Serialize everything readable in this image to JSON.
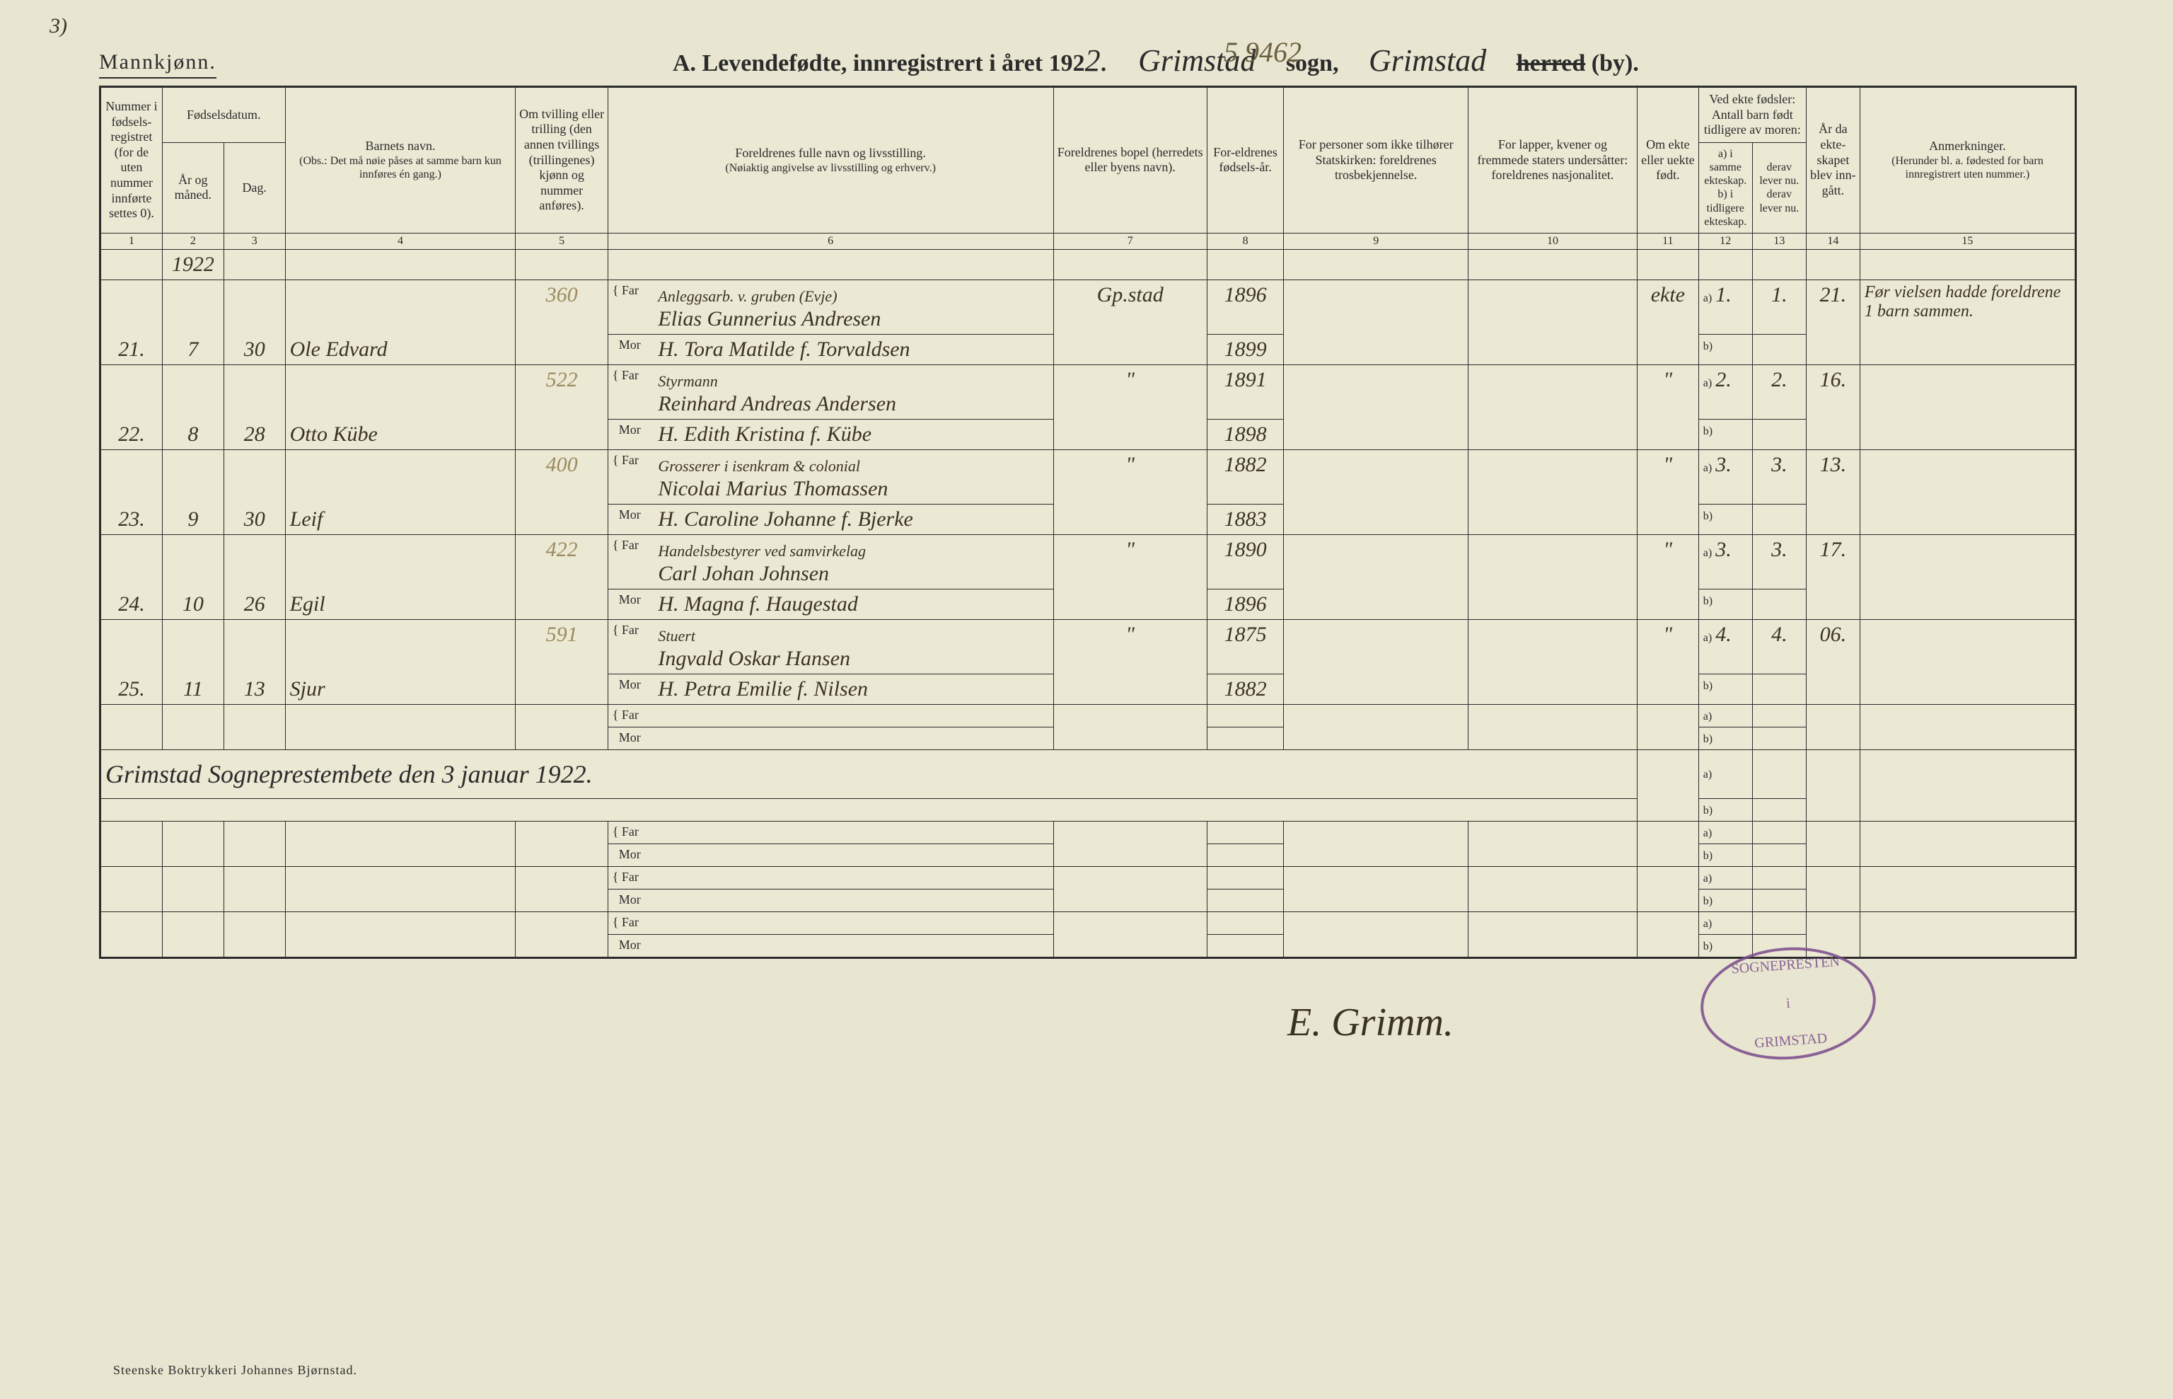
{
  "corner_note": "3)",
  "stray_number": "5 9462",
  "header": {
    "gender": "Mannkjønn.",
    "title_prefix": "A.  Levendefødte, innregistrert i året 192",
    "year_suffix": "2.",
    "parish_script": "Grimstad",
    "sogn_label": "sogn,",
    "district_script": "Grimstad",
    "herred_struck": "herred",
    "by_label": "(by)."
  },
  "columns": {
    "c1": "Nummer i fødsels-registret (for de uten nummer innførte settes 0).",
    "c2_top": "Fødselsdatum.",
    "c2a": "År og måned.",
    "c2b": "Dag.",
    "c4_top": "Barnets navn.",
    "c4_sub": "(Obs.: Det må nøie påses at samme barn kun innføres én gang.)",
    "c5": "Om tvilling eller trilling (den annen tvillings (trillingenes) kjønn og nummer anføres).",
    "c6_top": "Foreldrenes fulle navn og livsstilling.",
    "c6_sub": "(Nøiaktig angivelse av livsstilling og erhverv.)",
    "c7": "Foreldrenes bopel (herredets eller byens navn).",
    "c8": "For-eldrenes fødsels-år.",
    "c9": "For personer som ikke tilhører Statskirken: foreldrenes trosbekjennelse.",
    "c10": "For lapper, kvener og fremmede staters undersåtter: foreldrenes nasjonalitet.",
    "c11": "Om ekte eller uekte født.",
    "c12_top": "Ved ekte fødsler: Antall barn født tidligere av moren:",
    "c12a": "a) i samme ekteskap.",
    "c12a_sub": "derav lever nu.",
    "c12b": "b) i tidligere ekteskap.",
    "c12b_sub": "derav lever nu.",
    "c14": "År da ekte-skapet blev inn-gått.",
    "c15_top": "Anmerkninger.",
    "c15_sub": "(Herunder bl. a. fødested for barn innregistrert uten nummer.)",
    "nums": [
      "1",
      "2",
      "3",
      "4",
      "5",
      "6",
      "7",
      "8",
      "9",
      "10",
      "11",
      "12",
      "13",
      "14",
      "15"
    ]
  },
  "far_label": "Far",
  "mor_label": "Mor",
  "a_label": "a)",
  "b_label": "b)",
  "ditto": "\"",
  "year_top": "1922",
  "entries": [
    {
      "num": "21.",
      "month": "7",
      "day": "30",
      "child": "Ole Edvard",
      "side_num": "360",
      "far_occ": "Anleggsarb. v. gruben (Evje)",
      "far": "Elias Gunnerius Andresen",
      "mor": "H. Tora Matilde f. Torvaldsen",
      "place": "Gp.stad",
      "far_year": "1896",
      "mor_year": "1899",
      "ekte": "ekte",
      "a_same": "1.",
      "a_live": "1.",
      "married": "21.",
      "note": "Før vielsen hadde foreldrene 1 barn sammen."
    },
    {
      "num": "22.",
      "month": "8",
      "day": "28",
      "child": "Otto Kübe",
      "side_num": "522",
      "far_occ": "Styrmann",
      "far": "Reinhard Andreas Andersen",
      "mor": "H. Edith Kristina f. Kübe",
      "place": "\"",
      "far_year": "1891",
      "mor_year": "1898",
      "ekte": "\"",
      "a_same": "2.",
      "a_live": "2.",
      "married": "16.",
      "note": ""
    },
    {
      "num": "23.",
      "month": "9",
      "day": "30",
      "child": "Leif",
      "side_num": "400",
      "far_occ": "Grosserer i isenkram & colonial",
      "far": "Nicolai Marius Thomassen",
      "mor": "H. Caroline Johanne f. Bjerke",
      "place": "\"",
      "far_year": "1882",
      "mor_year": "1883",
      "ekte": "\"",
      "a_same": "3.",
      "a_live": "3.",
      "married": "13.",
      "note": ""
    },
    {
      "num": "24.",
      "month": "10",
      "day": "26",
      "child": "Egil",
      "side_num": "422",
      "far_occ": "Handelsbestyrer ved samvirkelag",
      "far": "Carl Johan Johnsen",
      "mor": "H. Magna f. Haugestad",
      "place": "\"",
      "far_year": "1890",
      "mor_year": "1896",
      "ekte": "\"",
      "a_same": "3.",
      "a_live": "3.",
      "married": "17.",
      "note": ""
    },
    {
      "num": "25.",
      "month": "11",
      "day": "13",
      "child": "Sjur",
      "side_num": "591",
      "far_occ": "Stuert",
      "far": "Ingvald Oskar Hansen",
      "mor": "H. Petra Emilie f. Nilsen",
      "place": "\"",
      "far_year": "1875",
      "mor_year": "1882",
      "ekte": "\"",
      "a_same": "4.",
      "a_live": "4.",
      "married": "06.",
      "note": ""
    }
  ],
  "blank_count": 5,
  "closing_line": "Grimstad Sogneprestembete den 3 januar 1922.",
  "signature": "E. Grimm.",
  "stamp_top": "SOGNEPRESTEN",
  "stamp_mid": "i",
  "stamp_bottom": "GRIMSTAD",
  "printer": "Steenske Boktrykkeri Johannes Bjørnstad.",
  "colors": {
    "paper": "#e8e5d0",
    "ink": "#2b2b2b",
    "script_ink": "#3a3320",
    "stamp": "#7a4b8c"
  }
}
